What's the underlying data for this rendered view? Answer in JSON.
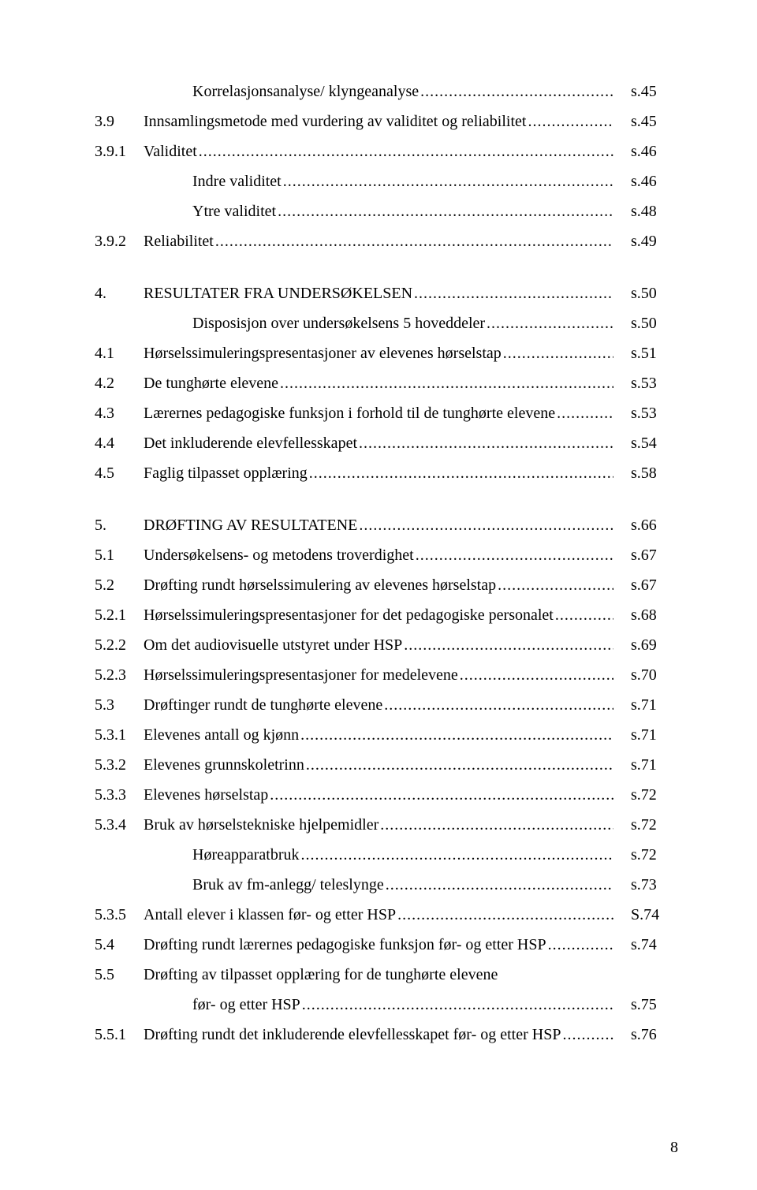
{
  "page_number": "8",
  "leader_char": ".",
  "toc": [
    {
      "num": "",
      "title": "Korrelasjonsanalyse/ klyngeanalyse",
      "page": "s.45",
      "indent": true
    },
    {
      "num": "3.9",
      "title": "Innsamlingsmetode med vurdering av validitet og reliabilitet",
      "page": "s.45"
    },
    {
      "num": "3.9.1",
      "title": "Validitet",
      "page": "s.46"
    },
    {
      "num": "",
      "title": "Indre validitet",
      "page": "s.46",
      "indent": true
    },
    {
      "num": "",
      "title": "Ytre validitet",
      "page": "s.48",
      "indent": true
    },
    {
      "num": "3.9.2",
      "title": "Reliabilitet",
      "page": "s.49"
    },
    {
      "spacer": true
    },
    {
      "num": "4.",
      "title": "RESULTATER FRA UNDERSØKELSEN",
      "page": "s.50"
    },
    {
      "num": "",
      "title": "Disposisjon over undersøkelsens 5 hoveddeler",
      "page": "s.50",
      "indent": true
    },
    {
      "num": "4.1",
      "title": "Hørselssimuleringspresentasjoner av elevenes hørselstap",
      "page": "s.51"
    },
    {
      "num": "4.2",
      "title": "De tunghørte elevene",
      "page": "s.53"
    },
    {
      "num": "4.3",
      "title": "Lærernes pedagogiske funksjon i forhold til de tunghørte elevene",
      "page": "s.53"
    },
    {
      "num": "4.4",
      "title": "Det inkluderende elevfellesskapet",
      "page": "s.54"
    },
    {
      "num": "4.5",
      "title": "Faglig tilpasset opplæring",
      "page": "s.58"
    },
    {
      "spacer": true
    },
    {
      "num": "5.",
      "title": "DRØFTING AV RESULTATENE",
      "page": "s.66"
    },
    {
      "num": "5.1",
      "title": "Undersøkelsens- og metodens troverdighet",
      "page": "s.67"
    },
    {
      "num": "5.2",
      "title": "Drøfting rundt hørselssimulering av elevenes hørselstap",
      "page": "s.67"
    },
    {
      "num": "5.2.1",
      "title": "Hørselssimuleringspresentasjoner for det pedagogiske personalet",
      "page": "s.68"
    },
    {
      "num": "5.2.2",
      "title": "Om det audiovisuelle utstyret under HSP",
      "page": "s.69"
    },
    {
      "num": "5.2.3",
      "title": "Hørselssimuleringspresentasjoner for medelevene",
      "page": "s.70"
    },
    {
      "num": "5.3",
      "title": "Drøftinger rundt de tunghørte elevene",
      "page": "s.71"
    },
    {
      "num": "5.3.1",
      "title": "Elevenes antall og kjønn",
      "page": "s.71"
    },
    {
      "num": "5.3.2",
      "title": "Elevenes grunnskoletrinn",
      "page": "s.71"
    },
    {
      "num": "5.3.3",
      "title": "Elevenes hørselstap",
      "page": "s.72"
    },
    {
      "num": "5.3.4",
      "title": "Bruk av hørselstekniske hjelpemidler",
      "page": "s.72"
    },
    {
      "num": "",
      "title": "Høreapparatbruk",
      "page": "s.72",
      "indent": true
    },
    {
      "num": "",
      "title": "Bruk av fm-anlegg/ teleslynge",
      "page": "s.73",
      "indent": true
    },
    {
      "num": "5.3.5",
      "title": "Antall elever i klassen før- og etter HSP",
      "page": "S.74"
    },
    {
      "num": "5.4",
      "title": "Drøfting rundt lærernes pedagogiske funksjon før- og etter HSP",
      "page": "s.74"
    },
    {
      "num": "5.5",
      "title": "Drøfting av tilpasset opplæring for de tunghørte elevene",
      "page": "",
      "no_leader": true
    },
    {
      "num": "",
      "title": "før- og etter HSP",
      "page": "s.75",
      "indent": true
    },
    {
      "num": "5.5.1",
      "title": "Drøfting rundt det inkluderende elevfellesskapet før- og etter HSP",
      "page": "s.76"
    }
  ]
}
